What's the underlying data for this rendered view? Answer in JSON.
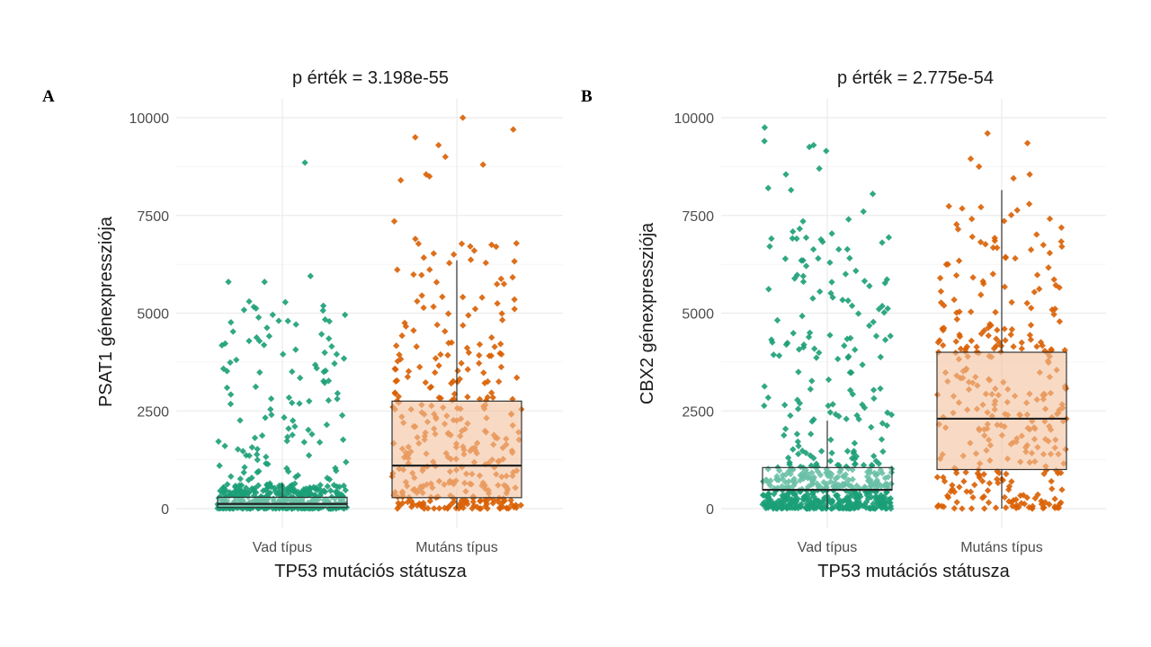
{
  "colors": {
    "wild": "#1b9e77",
    "mutant": "#d95f02",
    "box_fill": "#f4c19c",
    "box_line": "#333333"
  },
  "chart_data": [
    {
      "type": "boxplot-with-jitter",
      "panel_label": "A",
      "title": "p érték = 3.198e-55",
      "xlabel": "TP53 mutációs státusza",
      "ylabel": "PSAT1 génexpressziója",
      "ylim": [
        -500,
        10500
      ],
      "yticks": [
        0,
        2500,
        5000,
        7500,
        10000
      ],
      "grid": true,
      "categories": [
        "Vad típus",
        "Mutáns típus"
      ],
      "groups": [
        {
          "name": "Vad típus",
          "color": "#1b9e77",
          "box": {
            "q1": 30,
            "median": 120,
            "q3": 290,
            "whisker_low": 0,
            "whisker_high": 650
          },
          "n_points": 500,
          "dist": {
            "base_max": 600,
            "tail_frac": 0.22,
            "tail_max": 5200
          },
          "outliers": [
            3950,
            5800,
            5280,
            5800,
            4350,
            4150,
            3950,
            5950,
            5300,
            8850,
            2400,
            2100
          ]
        },
        {
          "name": "Mutáns típus",
          "color": "#d95f02",
          "box": {
            "q1": 280,
            "median": 1100,
            "q3": 2750,
            "whisker_low": 0,
            "whisker_high": 6350
          },
          "n_points": 340,
          "dist": {
            "base_max": 2800,
            "tail_frac": 0.3,
            "tail_max": 6800
          },
          "outliers": [
            10000,
            9700,
            9000,
            8550,
            8400,
            8500,
            8800,
            9500,
            9300,
            7350,
            6900,
            6750,
            6600,
            6500,
            6700
          ]
        }
      ]
    },
    {
      "type": "boxplot-with-jitter",
      "panel_label": "B",
      "title": "p érték = 2.775e-54",
      "xlabel": "TP53 mutációs státusza",
      "ylabel": "CBX2 génexpressziója",
      "ylim": [
        -500,
        10500
      ],
      "yticks": [
        0,
        2500,
        5000,
        7500,
        10000
      ],
      "grid": true,
      "categories": [
        "Vad típus",
        "Mutáns típus"
      ],
      "groups": [
        {
          "name": "Vad típus",
          "color": "#1b9e77",
          "box": {
            "q1": 480,
            "median": 480,
            "q3": 1050,
            "whisker_low": 0,
            "whisker_high": 2250
          },
          "n_points": 560,
          "dist": {
            "base_max": 1100,
            "tail_frac": 0.28,
            "tail_max": 7200
          },
          "outliers": [
            9750,
            9400,
            9300,
            9250,
            9150,
            8700,
            8550,
            8150,
            8050,
            8200,
            7600,
            7350,
            7400,
            6400,
            6350
          ]
        },
        {
          "name": "Mutáns típus",
          "color": "#d95f02",
          "box": {
            "q1": 1000,
            "median": 2300,
            "q3": 4000,
            "whisker_low": 0,
            "whisker_high": 8150
          },
          "n_points": 330,
          "dist": {
            "base_max": 4000,
            "tail_frac": 0.35,
            "tail_max": 7800
          },
          "outliers": [
            9600,
            9350,
            8950,
            8750,
            8550,
            8450
          ]
        }
      ]
    }
  ]
}
